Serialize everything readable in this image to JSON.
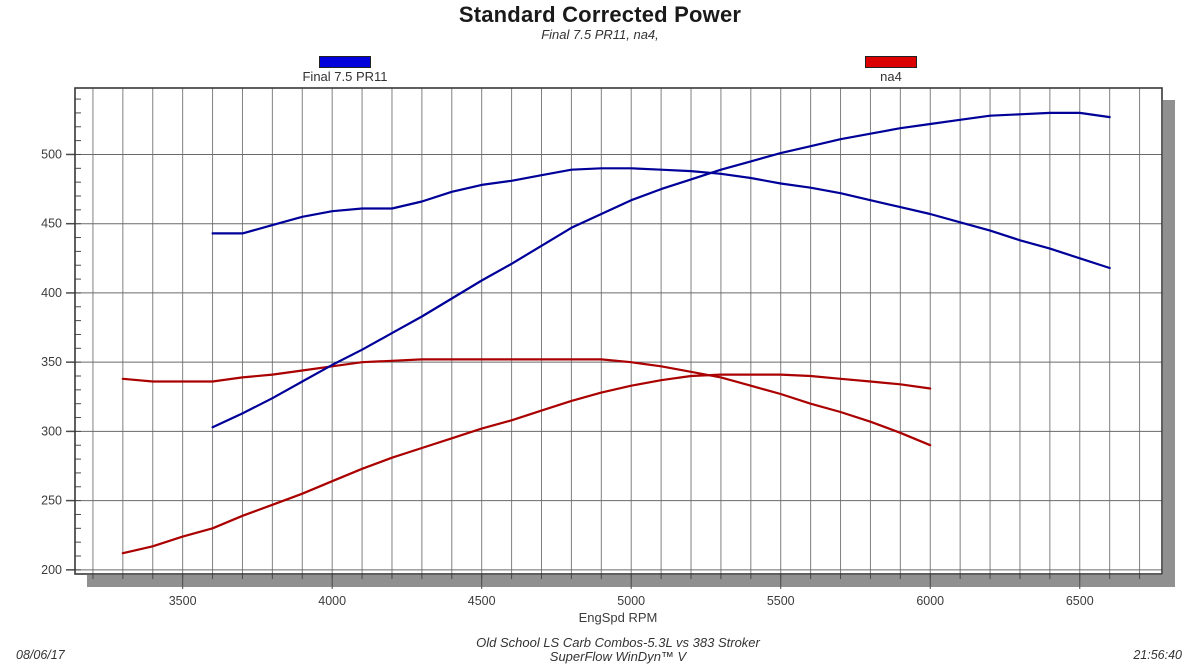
{
  "header": {
    "title": "Standard Corrected Power",
    "subtitle": "Final 7.5 PR11, na4,"
  },
  "legend": [
    {
      "label": "Final 7.5 PR11",
      "color": "#0000DD"
    },
    {
      "label": "na4",
      "color": "#DD0000"
    }
  ],
  "footer": {
    "date": "08/06/17",
    "test_title": "Old School LS Carb Combos-5.3L vs 383 Stroker",
    "software": "SuperFlow WinDyn™ V",
    "time": "21:56:40"
  },
  "chart_data": {
    "type": "line",
    "title": "Standard Corrected Power",
    "subtitle": "Final 7.5 PR11, na4,",
    "xlabel": "EngSpd RPM",
    "ylabel": "",
    "xlim": [
      3140,
      6775
    ],
    "ylim": [
      197,
      548
    ],
    "x_major_ticks": [
      3500,
      4000,
      4500,
      5000,
      5500,
      6000,
      6500
    ],
    "x_grid_step": 100,
    "y_major_ticks": [
      200,
      250,
      300,
      350,
      400,
      450,
      500
    ],
    "y_minor_step": 10,
    "grid": true,
    "legend_position": "top",
    "colors": {
      "blue_line": "#000099",
      "red_line": "#AA0000",
      "grid": "#808080",
      "border": "#383838",
      "shadow": "#909090",
      "tick_text": "#3c3c3c"
    },
    "series": [
      {
        "name": "na4 torque",
        "color": "#AA0000",
        "x": [
          3300,
          3400,
          3500,
          3600,
          3700,
          3800,
          3900,
          4000,
          4100,
          4200,
          4300,
          4400,
          4500,
          4600,
          4700,
          4800,
          4900,
          5000,
          5100,
          5200,
          5300,
          5400,
          5500,
          5600,
          5700,
          5800,
          5900,
          6000
        ],
        "values": [
          338,
          336,
          336,
          336,
          339,
          341,
          344,
          347,
          350,
          351,
          352,
          352,
          352,
          352,
          352,
          352,
          352,
          350,
          347,
          343,
          339,
          333,
          327,
          320,
          314,
          307,
          299,
          290
        ]
      },
      {
        "name": "na4 power",
        "color": "#AA0000",
        "x": [
          3300,
          3400,
          3500,
          3600,
          3700,
          3800,
          3900,
          4000,
          4100,
          4200,
          4300,
          4400,
          4500,
          4600,
          4700,
          4800,
          4900,
          5000,
          5100,
          5200,
          5300,
          5400,
          5500,
          5600,
          5700,
          5800,
          5900,
          6000
        ],
        "values": [
          212,
          217,
          224,
          230,
          239,
          247,
          255,
          264,
          273,
          281,
          288,
          295,
          302,
          308,
          315,
          322,
          328,
          333,
          337,
          340,
          341,
          341,
          341,
          340,
          338,
          336,
          334,
          331
        ]
      },
      {
        "name": "Final 7.5 PR11 torque",
        "color": "#000099",
        "x": [
          3600,
          3700,
          3800,
          3900,
          4000,
          4100,
          4200,
          4300,
          4400,
          4500,
          4600,
          4700,
          4800,
          4900,
          5000,
          5100,
          5200,
          5300,
          5400,
          5500,
          5600,
          5700,
          5800,
          5900,
          6000,
          6100,
          6200,
          6300,
          6400,
          6500,
          6600
        ],
        "values": [
          443,
          443,
          449,
          455,
          459,
          461,
          461,
          466,
          473,
          478,
          481,
          485,
          489,
          490,
          490,
          489,
          488,
          486,
          483,
          479,
          476,
          472,
          467,
          462,
          457,
          451,
          445,
          438,
          432,
          425,
          418
        ]
      },
      {
        "name": "Final 7.5 PR11 power",
        "color": "#000099",
        "x": [
          3600,
          3700,
          3800,
          3900,
          4000,
          4100,
          4200,
          4300,
          4400,
          4500,
          4600,
          4700,
          4800,
          4900,
          5000,
          5100,
          5200,
          5300,
          5400,
          5500,
          5600,
          5700,
          5800,
          5900,
          6000,
          6100,
          6200,
          6300,
          6400,
          6500,
          6600
        ],
        "values": [
          303,
          313,
          324,
          336,
          348,
          359,
          371,
          383,
          396,
          409,
          421,
          434,
          447,
          457,
          467,
          475,
          482,
          489,
          495,
          501,
          506,
          511,
          515,
          519,
          522,
          525,
          528,
          529,
          530,
          530,
          527
        ]
      }
    ]
  }
}
